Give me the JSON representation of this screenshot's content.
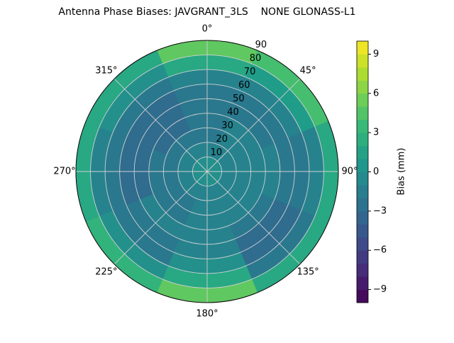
{
  "chart_data": {
    "type": "polar-contour",
    "title": "Antenna Phase Biases: JAVGRANT_3LS    NONE GLONASS-L1",
    "theta": [
      0,
      45,
      90,
      135,
      180,
      225,
      270,
      315
    ],
    "r_edges": [
      0,
      10,
      20,
      30,
      40,
      50,
      60,
      70,
      80,
      90
    ],
    "values": [
      [
        0,
        0,
        0,
        0,
        0,
        0,
        0,
        0
      ],
      [
        -1,
        -1,
        -1,
        -1,
        -1,
        -1,
        -1,
        -1
      ],
      [
        -2,
        -1,
        -1,
        -1,
        -1,
        -2,
        -2,
        -2
      ],
      [
        -2,
        -1,
        -1,
        -1,
        -1,
        -2,
        -2,
        -3
      ],
      [
        -2,
        -2,
        -1,
        -2,
        -1,
        -1,
        -3,
        -3
      ],
      [
        -2,
        -2,
        -2,
        -3,
        -1,
        -2,
        -3,
        -3
      ],
      [
        -1,
        -1,
        -2,
        -3,
        0,
        -2,
        -2,
        -2
      ],
      [
        2,
        1,
        -1,
        -2,
        2,
        0,
        -1,
        0
      ],
      [
        5,
        4,
        2,
        2,
        5,
        3,
        2,
        2
      ]
    ],
    "rlim": [
      0,
      90
    ],
    "rticks": [
      10,
      20,
      30,
      40,
      50,
      60,
      70,
      80,
      90
    ],
    "thetaticks": [
      {
        "value": 0,
        "label": "0°"
      },
      {
        "value": 45,
        "label": "45°"
      },
      {
        "value": 90,
        "label": "90°"
      },
      {
        "value": 135,
        "label": "135°"
      },
      {
        "value": 180,
        "label": "180°"
      },
      {
        "value": 225,
        "label": "225°"
      },
      {
        "value": 270,
        "label": "270°"
      },
      {
        "value": 315,
        "label": "315°"
      }
    ],
    "colorbar_label": "Bias (mm)",
    "clim": [
      -10,
      10
    ],
    "cticks": [
      {
        "value": -9,
        "label": "−9"
      },
      {
        "value": -6,
        "label": "−6"
      },
      {
        "value": -3,
        "label": "−3"
      },
      0,
      3,
      6,
      9
    ],
    "colormap": "viridis",
    "grid": true
  }
}
